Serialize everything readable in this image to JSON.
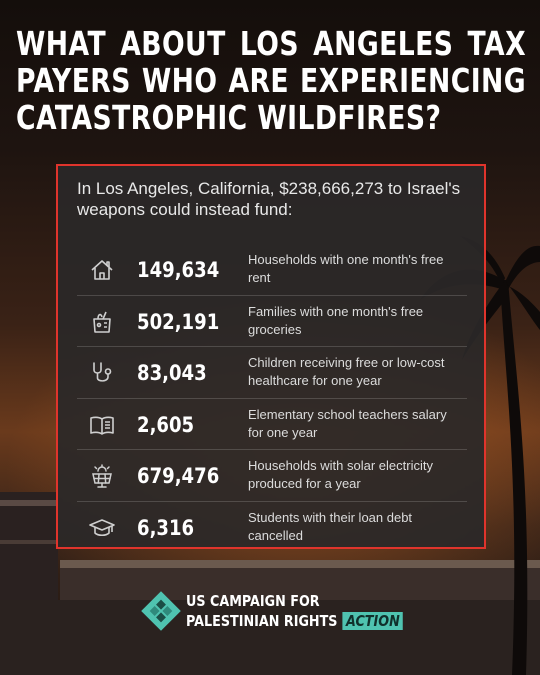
{
  "headline": "WHAT ABOUT LOS ANGELES TAX PAYERS WHO ARE EXPERIENCING CATASTROPHIC WILDFIRES?",
  "card": {
    "intro": "In Los Angeles, California, $238,666,273 to Israel's weapons could instead fund:",
    "border_color": "#e0342c",
    "rows": [
      {
        "icon": "house-icon",
        "number": "149,634",
        "desc": "Households with one month's free rent"
      },
      {
        "icon": "grocery-bag-icon",
        "number": "502,191",
        "desc": "Families with one month's free groceries"
      },
      {
        "icon": "stethoscope-icon",
        "number": "83,043",
        "desc": "Children receiving free or low-cost healthcare for one year"
      },
      {
        "icon": "book-icon",
        "number": "2,605",
        "desc": "Elementary school teachers salary for one year"
      },
      {
        "icon": "solar-panel-icon",
        "number": "679,476",
        "desc": "Households with solar electricity produced for a year"
      },
      {
        "icon": "graduation-cap-icon",
        "number": "6,316",
        "desc": "Students with their loan debt cancelled"
      }
    ]
  },
  "logo": {
    "line1": "US CAMPAIGN FOR",
    "line2": "PALESTINIAN RIGHTS",
    "action": "ACTION",
    "accent_color": "#4fc3b0"
  }
}
